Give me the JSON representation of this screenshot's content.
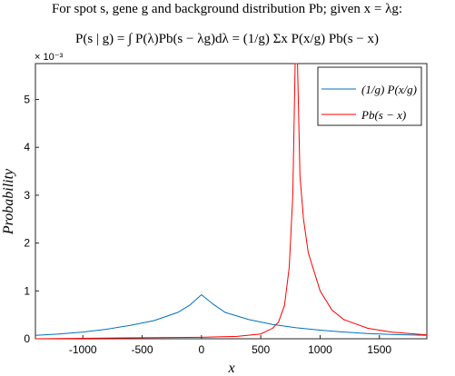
{
  "chart_data": {
    "type": "line",
    "title_lines": [
      "For spot s, gene g and background distribution Pb; given x = λg:",
      "P(s | g) = ∫ P(λ)Pb(s − λg)dλ = (1/g) Σx P(x/g) Pb(s − x)"
    ],
    "xlabel": "x",
    "ylabel": "Probability",
    "y_exponent_label": "× 10⁻³",
    "xlim": [
      -1400,
      1900
    ],
    "ylim": [
      0,
      5.75
    ],
    "x_ticks": [
      -1000,
      -500,
      0,
      500,
      1000,
      1500
    ],
    "x_tick_labels": [
      "-1000",
      "-500",
      "0",
      "500",
      "1000",
      "1500"
    ],
    "y_ticks": [
      0,
      1,
      2,
      3,
      4,
      5
    ],
    "y_tick_labels": [
      "0",
      "1",
      "2",
      "3",
      "4",
      "5"
    ],
    "grid": false,
    "legend_position": "top-right",
    "series": [
      {
        "name": "(1/g) P(x/g)",
        "color": "#0072BD",
        "x": [
          -1400,
          -1200,
          -1000,
          -800,
          -600,
          -400,
          -200,
          -100,
          0,
          100,
          200,
          400,
          600,
          800,
          1000,
          1200,
          1400,
          1600,
          1900
        ],
        "y": [
          0.07,
          0.1,
          0.14,
          0.2,
          0.28,
          0.38,
          0.55,
          0.7,
          0.92,
          0.72,
          0.55,
          0.4,
          0.3,
          0.23,
          0.18,
          0.14,
          0.11,
          0.09,
          0.07
        ]
      },
      {
        "name": "Pb(s − x)",
        "color": "#FF0000",
        "x": [
          -1400,
          -1000,
          -500,
          0,
          300,
          500,
          600,
          650,
          700,
          740,
          770,
          790,
          800,
          810,
          830,
          860,
          900,
          1000,
          1100,
          1200,
          1400,
          1600,
          1900
        ],
        "y": [
          0.0,
          0.01,
          0.02,
          0.03,
          0.05,
          0.1,
          0.22,
          0.35,
          0.7,
          1.5,
          3.0,
          5.75,
          5.75,
          5.75,
          3.4,
          2.5,
          1.8,
          1.0,
          0.6,
          0.4,
          0.22,
          0.14,
          0.08
        ]
      }
    ]
  }
}
